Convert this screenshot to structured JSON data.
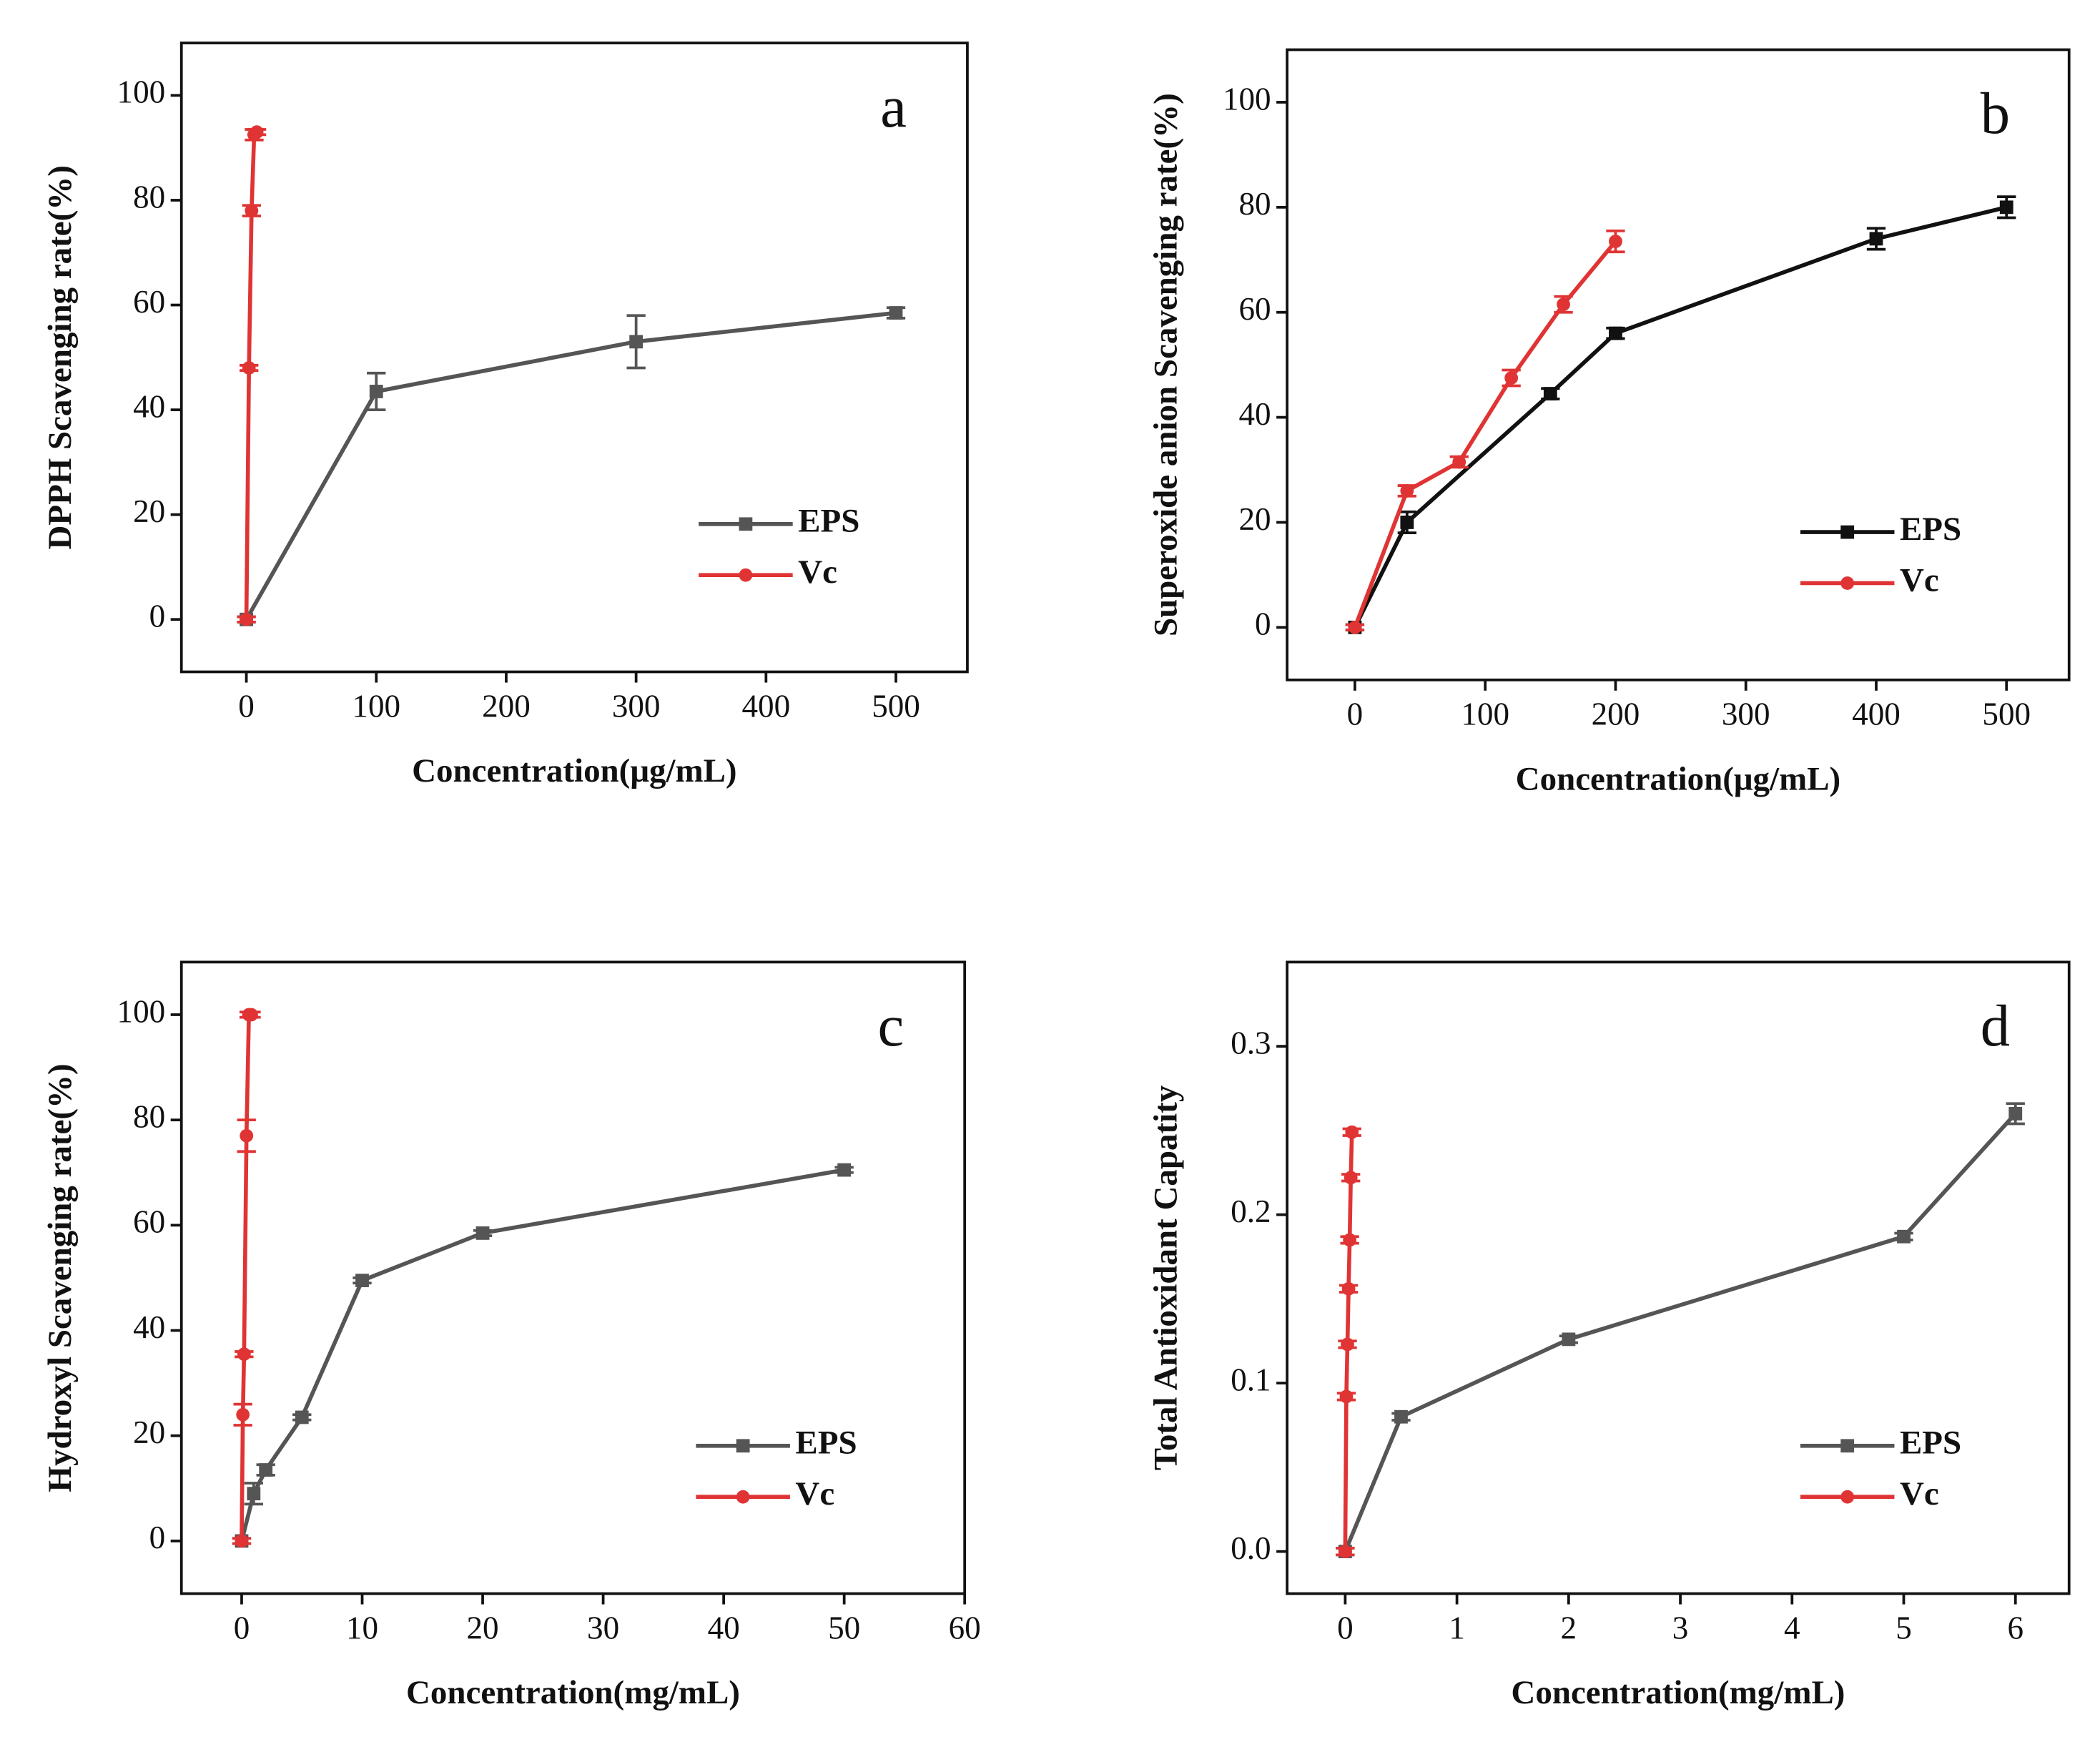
{
  "chart_data": [
    {
      "type": "line",
      "annotation": "a",
      "x_label": "Concentration(μg/mL)",
      "y_label": "DPPH Scavenging rate(%)",
      "xlim": [
        -50,
        555
      ],
      "xticks": [
        0,
        100,
        200,
        300,
        400,
        500
      ],
      "ylim": [
        -10,
        110
      ],
      "yticks": [
        0,
        20,
        40,
        60,
        80,
        100
      ],
      "legend": "lower right",
      "series": [
        {
          "name": "EPS",
          "color": "#555555",
          "marker": "square",
          "x": [
            0,
            100,
            300,
            500
          ],
          "values": [
            0,
            43.5,
            53,
            58.5
          ],
          "errors": [
            0.5,
            3.5,
            5,
            1
          ]
        },
        {
          "name": "Vc",
          "color": "#e03434",
          "marker": "circle",
          "x": [
            0,
            2,
            4,
            6,
            8
          ],
          "values": [
            0,
            48,
            78,
            92.5,
            93
          ],
          "errors": [
            0.5,
            0.5,
            1,
            1,
            0.5
          ]
        }
      ]
    },
    {
      "type": "line",
      "annotation": "b",
      "x_label": "Concentration(μg/mL)",
      "y_label": "Superoxide anion Scavenging rate(%)",
      "xlim": [
        -52,
        548
      ],
      "xticks": [
        0,
        100,
        200,
        300,
        400,
        500
      ],
      "ylim": [
        -10,
        110
      ],
      "yticks": [
        0,
        20,
        40,
        60,
        80,
        100
      ],
      "legend": "lower right",
      "series": [
        {
          "name": "EPS",
          "color": "#111111",
          "marker": "square",
          "x": [
            0,
            40,
            150,
            200,
            400,
            500
          ],
          "values": [
            0,
            20,
            44.5,
            56,
            74,
            80
          ],
          "errors": [
            0.5,
            2,
            1,
            1,
            2,
            2
          ]
        },
        {
          "name": "Vc",
          "color": "#e03434",
          "marker": "circle",
          "x": [
            0,
            40,
            80,
            120,
            160,
            200
          ],
          "values": [
            0,
            26,
            31.5,
            47.5,
            61.5,
            73.5
          ],
          "errors": [
            0.5,
            1,
            1,
            1.5,
            1.5,
            2
          ]
        }
      ]
    },
    {
      "type": "line",
      "annotation": "c",
      "x_label": "Concentration(mg/mL)",
      "y_label": "Hydroxyl Scavenging rate(%)",
      "xlim": [
        -5,
        60
      ],
      "xticks": [
        0,
        10,
        20,
        30,
        40,
        50,
        60
      ],
      "ylim": [
        -10,
        110
      ],
      "yticks": [
        0,
        20,
        40,
        60,
        80,
        100
      ],
      "legend": "lower right",
      "series": [
        {
          "name": "EPS",
          "color": "#555555",
          "marker": "square",
          "x": [
            0,
            1,
            2,
            5,
            10,
            20,
            50
          ],
          "values": [
            0,
            9,
            13.5,
            23.5,
            49.5,
            58.5,
            70.5
          ],
          "errors": [
            0.5,
            2,
            1,
            0.5,
            0.5,
            0.5,
            0.5
          ]
        },
        {
          "name": "Vc",
          "color": "#e03434",
          "marker": "circle",
          "x": [
            0,
            0.1,
            0.2,
            0.4,
            0.6,
            0.8
          ],
          "values": [
            0,
            24,
            35.5,
            77,
            100,
            100
          ],
          "errors": [
            0.5,
            2,
            0.5,
            3,
            0.5,
            0.5
          ]
        }
      ]
    },
    {
      "type": "line",
      "annotation": "d",
      "x_label": "Concentration(mg/mL)",
      "y_label": "Total Antioxidant Capatity",
      "xlim": [
        -0.52,
        6.48
      ],
      "xticks": [
        0,
        1,
        2,
        3,
        4,
        5,
        6
      ],
      "ylim": [
        -0.025,
        0.35
      ],
      "yticks": [
        {
          "value": 0,
          "label": "0.0"
        },
        0.1,
        0.2,
        0.3
      ],
      "legend": "lower right",
      "series": [
        {
          "name": "EPS",
          "color": "#555555",
          "marker": "square",
          "x": [
            0,
            0.5,
            2,
            5,
            6
          ],
          "values": [
            0,
            0.08,
            0.126,
            0.187,
            0.26
          ],
          "errors": [
            0.002,
            0.002,
            0.002,
            0.002,
            0.006
          ]
        },
        {
          "name": "Vc",
          "color": "#e03434",
          "marker": "circle",
          "x": [
            0,
            0.01,
            0.02,
            0.03,
            0.04,
            0.05,
            0.06
          ],
          "values": [
            0,
            0.092,
            0.123,
            0.156,
            0.185,
            0.222,
            0.249
          ],
          "errors": [
            0.002,
            0.002,
            0.002,
            0.002,
            0.002,
            0.002,
            0.002
          ]
        }
      ]
    }
  ]
}
